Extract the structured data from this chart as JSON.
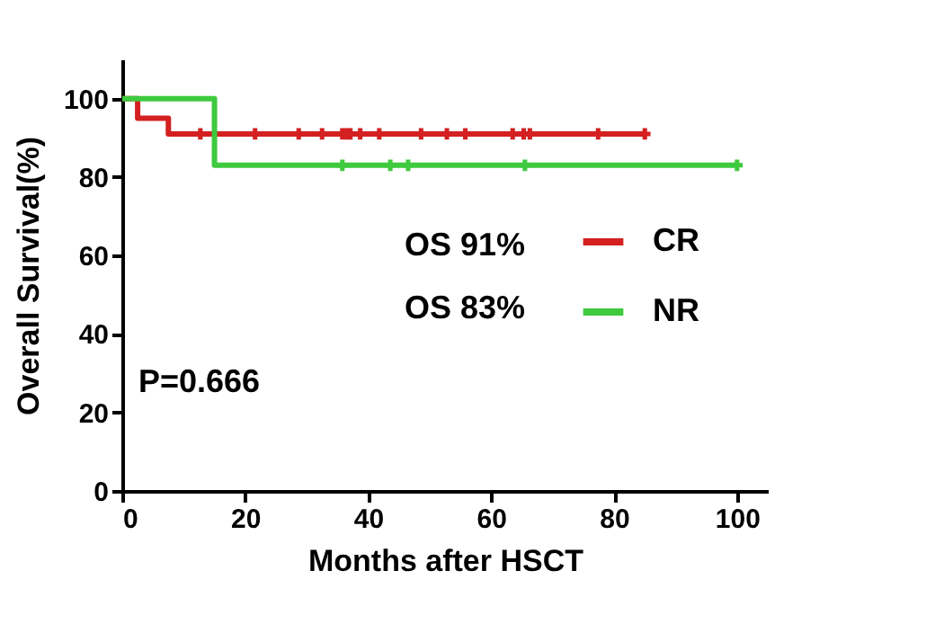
{
  "chart_data": {
    "type": "step",
    "xlabel": "Months after HSCT",
    "ylabel": "Overall Survival(%)",
    "xlim": [
      0,
      105
    ],
    "xticks": [
      0,
      20,
      40,
      60,
      80,
      100
    ],
    "ylim": [
      0,
      110
    ],
    "yticks": [
      0,
      20,
      40,
      60,
      80,
      100
    ],
    "grid": false,
    "legend": "right",
    "annotations": [
      "OS 91%",
      "OS 83%",
      "P=0.666"
    ],
    "series": [
      {
        "name": "CR",
        "color": "#d42020",
        "x": [
          0,
          2.5,
          7.5,
          85
        ],
        "values": [
          100,
          95,
          91,
          91
        ]
      },
      {
        "name": "NR",
        "color": "#3ec93e",
        "x": [
          0,
          15,
          100
        ],
        "values": [
          100,
          83,
          83
        ]
      },
      {
        "color": "#d42020",
        "type": "scatter",
        "marker": "cross",
        "x": [
          12.7,
          21.6,
          28.7,
          32.5,
          35.8,
          36.5,
          37.1,
          38.7,
          41.8,
          48.6,
          52.8,
          55.8,
          63.5,
          65.3,
          66.3,
          77.4,
          85
        ],
        "values": [
          91,
          91,
          91,
          91,
          91,
          91,
          91,
          91,
          91,
          91,
          91,
          91,
          91,
          91,
          91,
          91,
          91
        ]
      },
      {
        "color": "#3ec93e",
        "type": "scatter",
        "marker": "cross",
        "x": [
          35.8,
          43.6,
          46.5,
          65.5,
          100
        ],
        "values": [
          83,
          83,
          83,
          83,
          83
        ]
      }
    ]
  }
}
